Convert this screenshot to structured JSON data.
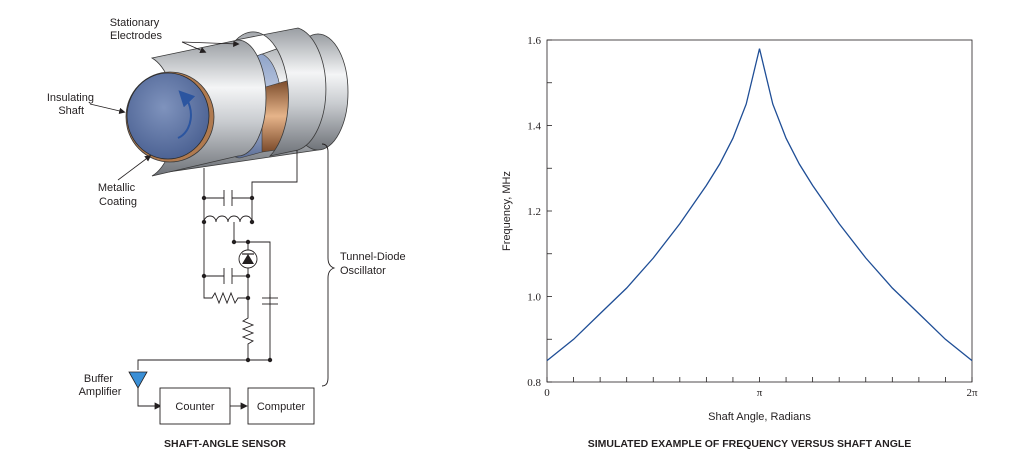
{
  "sensor": {
    "caption": "SHAFT-ANGLE SENSOR",
    "labels": {
      "stationary_electrodes": [
        "Stationary",
        "Electrodes"
      ],
      "insulating_shaft": [
        "Insulating",
        "Shaft"
      ],
      "metallic_coating": [
        "Metallic",
        "Coating"
      ],
      "tunnel_diode_oscillator": [
        "Tunnel-Diode",
        "Oscillator"
      ],
      "buffer_amplifier": [
        "Buffer",
        "Amplifier"
      ],
      "counter": "Counter",
      "computer": "Computer"
    }
  },
  "chart_data": {
    "type": "line",
    "title": "SIMULATED EXAMPLE OF FREQUENCY VERSUS SHAFT ANGLE",
    "xlabel": "Shaft Angle, Radians",
    "ylabel": "Frequency, MHz",
    "xlim": [
      0,
      6.2832
    ],
    "ylim": [
      0.8,
      1.6
    ],
    "x_tick_labels": [
      "0",
      "π",
      "2π"
    ],
    "y_tick_labels": [
      "0.8",
      "1.0",
      "1.2",
      "1.4",
      "1.6"
    ],
    "grid": false,
    "line_color": "#1f4e96",
    "series": [
      {
        "x": [
          0,
          0.3927,
          0.7854,
          1.1781,
          1.5708,
          1.9635,
          2.3562,
          2.5525,
          2.7489,
          2.9452,
          3.1416,
          3.3379,
          3.5343,
          3.7306,
          3.927,
          4.3197,
          4.7124,
          5.1051,
          5.4978,
          5.8905,
          6.2832
        ],
        "y": [
          0.85,
          0.9,
          0.96,
          1.02,
          1.09,
          1.17,
          1.26,
          1.31,
          1.37,
          1.45,
          1.58,
          1.45,
          1.37,
          1.31,
          1.26,
          1.17,
          1.09,
          1.02,
          0.96,
          0.9,
          0.85
        ]
      }
    ]
  }
}
